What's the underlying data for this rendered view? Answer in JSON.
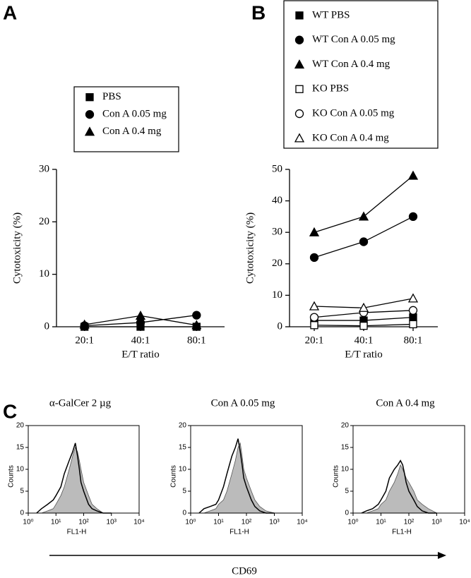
{
  "panel_labels": [
    "A",
    "B",
    "C"
  ],
  "arrow_label": "CD69",
  "chart_data": [
    {
      "type": "line",
      "categories": [
        "20:1",
        "40:1",
        "80:1"
      ],
      "ylabel": "Cytotoxicity (%)",
      "xlabel": "E/T ratio",
      "ylim": [
        0,
        30
      ],
      "yticks": [
        0,
        10,
        20,
        30
      ],
      "series": [
        {
          "name": "PBS",
          "color": "#000000",
          "marker": "square",
          "marker_fill": "#000000",
          "values": [
            0,
            0,
            0
          ]
        },
        {
          "name": "Con A 0.05 mg",
          "color": "#000000",
          "marker": "circle",
          "marker_fill": "#000000",
          "values": [
            0.2,
            0.8,
            2.2
          ]
        },
        {
          "name": "Con A 0.4 mg",
          "color": "#000000",
          "marker": "triangle",
          "marker_fill": "#000000",
          "values": [
            0.4,
            2.1,
            0.3
          ]
        }
      ]
    },
    {
      "type": "line",
      "categories": [
        "20:1",
        "40:1",
        "80:1"
      ],
      "ylabel": "Cytotoxicity (%)",
      "xlabel": "E/T ratio",
      "ylim": [
        0,
        50
      ],
      "yticks": [
        0,
        10,
        20,
        30,
        40,
        50
      ],
      "series": [
        {
          "name": "WT PBS",
          "color": "#000000",
          "marker": "square",
          "marker_fill": "#000000",
          "values": [
            2,
            2,
            3
          ]
        },
        {
          "name": "WT Con A 0.05 mg",
          "color": "#000000",
          "marker": "circle",
          "marker_fill": "#000000",
          "values": [
            22,
            27,
            35
          ]
        },
        {
          "name": "WT Con A 0.4 mg",
          "color": "#000000",
          "marker": "triangle",
          "marker_fill": "#000000",
          "values": [
            30,
            35,
            48
          ]
        },
        {
          "name": "KO PBS",
          "color": "#000000",
          "marker": "square",
          "marker_fill": "#ffffff",
          "values": [
            0.5,
            0.3,
            0.8
          ]
        },
        {
          "name": "KO Con A 0.05 mg",
          "color": "#000000",
          "marker": "circle",
          "marker_fill": "#ffffff",
          "values": [
            3,
            4.5,
            5.2
          ]
        },
        {
          "name": "KO Con A 0.4 mg",
          "color": "#000000",
          "marker": "triangle",
          "marker_fill": "#ffffff",
          "values": [
            6.5,
            6,
            9
          ]
        }
      ]
    },
    {
      "type": "area",
      "title": "α-GalCer 2 µg",
      "ylabel": "Counts",
      "xlabel": "FL1-H",
      "xlog": true,
      "xlim": [
        1,
        10000
      ],
      "xticks": [
        {
          "value": 1,
          "label": "10⁰"
        },
        {
          "value": 10,
          "label": "10¹"
        },
        {
          "value": 100,
          "label": "10²"
        },
        {
          "value": 1000,
          "label": "10³"
        },
        {
          "value": 10000,
          "label": "10⁴"
        }
      ],
      "ylim": [
        0,
        20
      ],
      "yticks": [
        0,
        5,
        10,
        15,
        20
      ],
      "x": [
        2,
        3,
        5,
        8,
        10,
        15,
        20,
        30,
        40,
        50,
        60,
        70,
        80,
        100,
        150,
        200,
        300,
        500,
        1000
      ],
      "series": [
        {
          "color": "#bbbbbb",
          "filled": true,
          "values": [
            0,
            0,
            0.5,
            1,
            2,
            4,
            6,
            10,
            13,
            15,
            14,
            12,
            10,
            7,
            4,
            2,
            1,
            0,
            0
          ]
        },
        {
          "color": "#000000",
          "filled": false,
          "values": [
            0,
            1,
            2,
            3,
            4,
            6,
            9,
            12,
            14,
            16,
            13,
            10,
            7,
            5,
            2,
            1,
            0.5,
            0,
            0
          ]
        }
      ]
    },
    {
      "type": "area",
      "title": "Con A 0.05 mg",
      "ylabel": "Counts",
      "xlabel": "FL1-H",
      "xlog": true,
      "xlim": [
        1,
        10000
      ],
      "xticks": [
        {
          "value": 1,
          "label": "10⁰"
        },
        {
          "value": 10,
          "label": "10¹"
        },
        {
          "value": 100,
          "label": "10²"
        },
        {
          "value": 1000,
          "label": "10³"
        },
        {
          "value": 10000,
          "label": "10⁴"
        }
      ],
      "ylim": [
        0,
        20
      ],
      "yticks": [
        0,
        5,
        10,
        15,
        20
      ],
      "x": [
        2,
        3,
        5,
        8,
        10,
        15,
        20,
        30,
        40,
        50,
        60,
        70,
        80,
        100,
        150,
        200,
        300,
        500,
        1000
      ],
      "series": [
        {
          "color": "#bbbbbb",
          "filled": true,
          "values": [
            0,
            0,
            0.5,
            1,
            2,
            3,
            5,
            9,
            12,
            15,
            16,
            13,
            10,
            8,
            5,
            3,
            1.5,
            0.5,
            0
          ]
        },
        {
          "color": "#000000",
          "filled": false,
          "values": [
            0,
            1,
            1.5,
            2,
            3,
            6,
            9,
            13,
            15,
            17,
            14,
            11,
            8,
            6,
            3,
            1.5,
            0.5,
            0,
            0
          ]
        }
      ]
    },
    {
      "type": "area",
      "title": "Con A 0.4 mg",
      "ylabel": "Counts",
      "xlabel": "FL1-H",
      "xlog": true,
      "xlim": [
        1,
        10000
      ],
      "xticks": [
        {
          "value": 1,
          "label": "10⁰"
        },
        {
          "value": 10,
          "label": "10¹"
        },
        {
          "value": 100,
          "label": "10²"
        },
        {
          "value": 1000,
          "label": "10³"
        },
        {
          "value": 10000,
          "label": "10⁴"
        }
      ],
      "ylim": [
        0,
        20
      ],
      "yticks": [
        0,
        5,
        10,
        15,
        20
      ],
      "x": [
        2,
        3,
        5,
        8,
        10,
        15,
        20,
        30,
        40,
        50,
        60,
        70,
        80,
        100,
        150,
        200,
        300,
        500,
        1000
      ],
      "series": [
        {
          "color": "#bbbbbb",
          "filled": true,
          "values": [
            0,
            0,
            0.5,
            1,
            2,
            3,
            5,
            7,
            9,
            11,
            10,
            9,
            8,
            7,
            5,
            3,
            2,
            1,
            0
          ]
        },
        {
          "color": "#000000",
          "filled": false,
          "values": [
            0,
            0.5,
            1,
            2,
            3,
            5,
            8,
            10,
            11,
            12,
            11,
            9,
            7,
            5,
            3,
            1.5,
            0.5,
            0,
            0
          ]
        }
      ]
    }
  ]
}
